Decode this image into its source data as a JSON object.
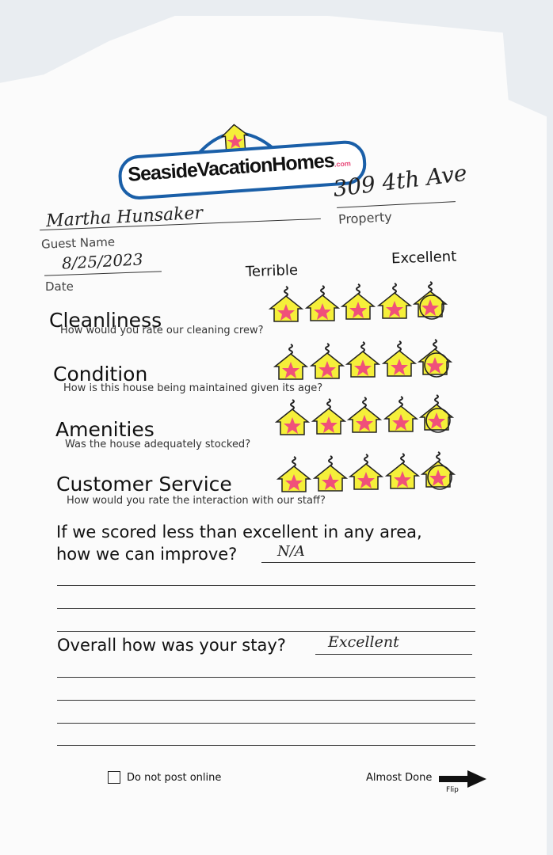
{
  "logo": {
    "brand": "SeasideVacationHomes",
    "suffix": ".com"
  },
  "guest": {
    "name_value": "Martha Hunsaker",
    "name_label": "Guest Name",
    "date_value": "8/25/2023",
    "date_label": "Date"
  },
  "property": {
    "value": "309 4th Ave",
    "label": "Property"
  },
  "scale": {
    "low_label": "Terrible",
    "high_label": "Excellent",
    "max": 5
  },
  "categories": [
    {
      "title": "Cleanliness",
      "question": "How would you rate our cleaning crew?",
      "rating": 5
    },
    {
      "title": "Condition",
      "question": "How is this house being maintained given its age?",
      "rating": 5
    },
    {
      "title": "Amenities",
      "question": "Was the house adequately stocked?",
      "rating": 5
    },
    {
      "title": "Customer Service",
      "question": "How would you rate the interaction with our staff?",
      "rating": 5
    }
  ],
  "improve": {
    "prompt_line1": "If we scored less than excellent in any area,",
    "prompt_line2": "how we can improve?",
    "answer": "N/A"
  },
  "overall": {
    "prompt": "Overall how was your stay?",
    "answer": "Excellent"
  },
  "footer": {
    "checkbox_label": "Do not post online",
    "checked": false,
    "next_label": "Almost Done",
    "flip_label": "Flip"
  },
  "colors": {
    "house": "#f5ef3a",
    "star": "#f0507a",
    "logo_blue": "#1a5fa8"
  }
}
